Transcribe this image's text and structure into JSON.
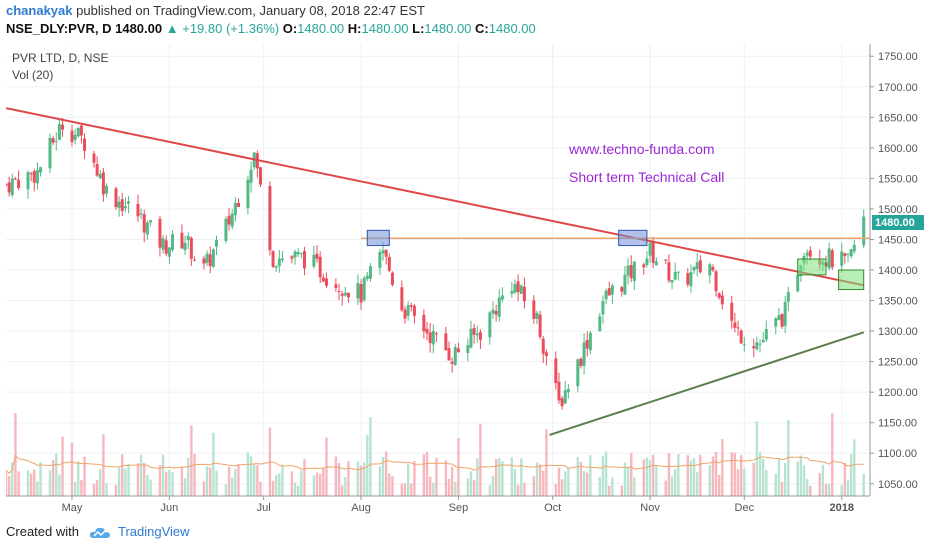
{
  "header": {
    "author": "chanakyak",
    "published_text": "published on TradingView.com, January 08, 2018 22:47 EST",
    "symbol": "NSE_DLY:PVR, D",
    "last_price": "1480.00",
    "change": "+19.80 (+1.36%)",
    "o_label": "O:",
    "o_value": "1480.00",
    "h_label": "H:",
    "h_value": "1480.00",
    "l_label": "L:",
    "l_value": "1480.00",
    "c_label": "C:",
    "c_value": "1480.00"
  },
  "chart_labels": {
    "series_title": "PVR LTD, D, NSE",
    "volume_title": "Vol (20)",
    "annotation_url": "www.techno-funda.com",
    "annotation_call": "Short term Technical Call",
    "price_badge": "1480.00"
  },
  "footer": {
    "created_with": "Created with",
    "brand": "TradingView"
  },
  "colors": {
    "up": "#26a69a",
    "down": "#ef5350",
    "up_candle_fill": "#53b987",
    "down_candle_fill": "#eb4d5c",
    "resistance_line": "#e04848",
    "support_line": "#5b7e4b",
    "horizontal_level": "#f0a46a",
    "annotation_text": "#9c27d6",
    "box_blue": "#6f8fd8",
    "box_green": "#7fe07f"
  },
  "chart_data": {
    "type": "candlestick",
    "title": "PVR LTD, D, NSE",
    "y_axis": {
      "ticks": [
        "1750.00",
        "1700.00",
        "1650.00",
        "1600.00",
        "1550.00",
        "1500.00",
        "1450.00",
        "1400.00",
        "1350.00",
        "1300.00",
        "1250.00",
        "1200.00",
        "1150.00",
        "1100.00",
        "1050.00"
      ],
      "ylim": [
        1030,
        1770
      ]
    },
    "x_axis": {
      "ticks": [
        "May",
        "Jun",
        "Jul",
        "Aug",
        "Sep",
        "Oct",
        "Nov",
        "Dec",
        "2018"
      ],
      "tick_dates": [
        "2017-05-01",
        "2017-06-01",
        "2017-07-01",
        "2017-08-01",
        "2017-09-01",
        "2017-10-01",
        "2017-11-01",
        "2017-12-01",
        "2018-01-01"
      ],
      "range": [
        "2017-04-10",
        "2018-01-10"
      ]
    },
    "approx_close_path": [
      {
        "date": "2017-04-10",
        "close": 1540
      },
      {
        "date": "2017-04-20",
        "close": 1560
      },
      {
        "date": "2017-04-28",
        "close": 1640
      },
      {
        "date": "2017-05-05",
        "close": 1610
      },
      {
        "date": "2017-05-12",
        "close": 1530
      },
      {
        "date": "2017-05-22",
        "close": 1490
      },
      {
        "date": "2017-05-30",
        "close": 1440
      },
      {
        "date": "2017-06-06",
        "close": 1450
      },
      {
        "date": "2017-06-12",
        "close": 1400
      },
      {
        "date": "2017-06-20",
        "close": 1480
      },
      {
        "date": "2017-06-28",
        "close": 1590
      },
      {
        "date": "2017-07-04",
        "close": 1420
      },
      {
        "date": "2017-07-14",
        "close": 1420
      },
      {
        "date": "2017-07-24",
        "close": 1380
      },
      {
        "date": "2017-08-01",
        "close": 1360
      },
      {
        "date": "2017-08-08",
        "close": 1430
      },
      {
        "date": "2017-08-14",
        "close": 1340
      },
      {
        "date": "2017-08-22",
        "close": 1300
      },
      {
        "date": "2017-08-30",
        "close": 1260
      },
      {
        "date": "2017-09-08",
        "close": 1300
      },
      {
        "date": "2017-09-18",
        "close": 1380
      },
      {
        "date": "2017-09-26",
        "close": 1320
      },
      {
        "date": "2017-10-03",
        "close": 1180
      },
      {
        "date": "2017-10-10",
        "close": 1260
      },
      {
        "date": "2017-10-17",
        "close": 1350
      },
      {
        "date": "2017-10-25",
        "close": 1390
      },
      {
        "date": "2017-11-01",
        "close": 1430
      },
      {
        "date": "2017-11-10",
        "close": 1380
      },
      {
        "date": "2017-11-20",
        "close": 1410
      },
      {
        "date": "2017-11-28",
        "close": 1300
      },
      {
        "date": "2017-12-06",
        "close": 1280
      },
      {
        "date": "2017-12-14",
        "close": 1330
      },
      {
        "date": "2017-12-20",
        "close": 1440
      },
      {
        "date": "2017-12-27",
        "close": 1420
      },
      {
        "date": "2018-01-03",
        "close": 1410
      },
      {
        "date": "2018-01-08",
        "close": 1480
      }
    ],
    "trendlines": [
      {
        "name": "resistance",
        "from": {
          "date": "2017-04-10",
          "price": 1665
        },
        "to": {
          "date": "2018-01-08",
          "price": 1375
        }
      },
      {
        "name": "support",
        "from": {
          "date": "2017-09-30",
          "price": 1130
        },
        "to": {
          "date": "2018-01-08",
          "price": 1298
        }
      },
      {
        "name": "level",
        "from": {
          "date": "2017-08-01",
          "price": 1452
        },
        "to": {
          "date": "2018-01-10",
          "price": 1452
        }
      }
    ],
    "volume": {
      "title": "Vol (20)"
    },
    "last_price": 1480.0,
    "grid": true
  }
}
